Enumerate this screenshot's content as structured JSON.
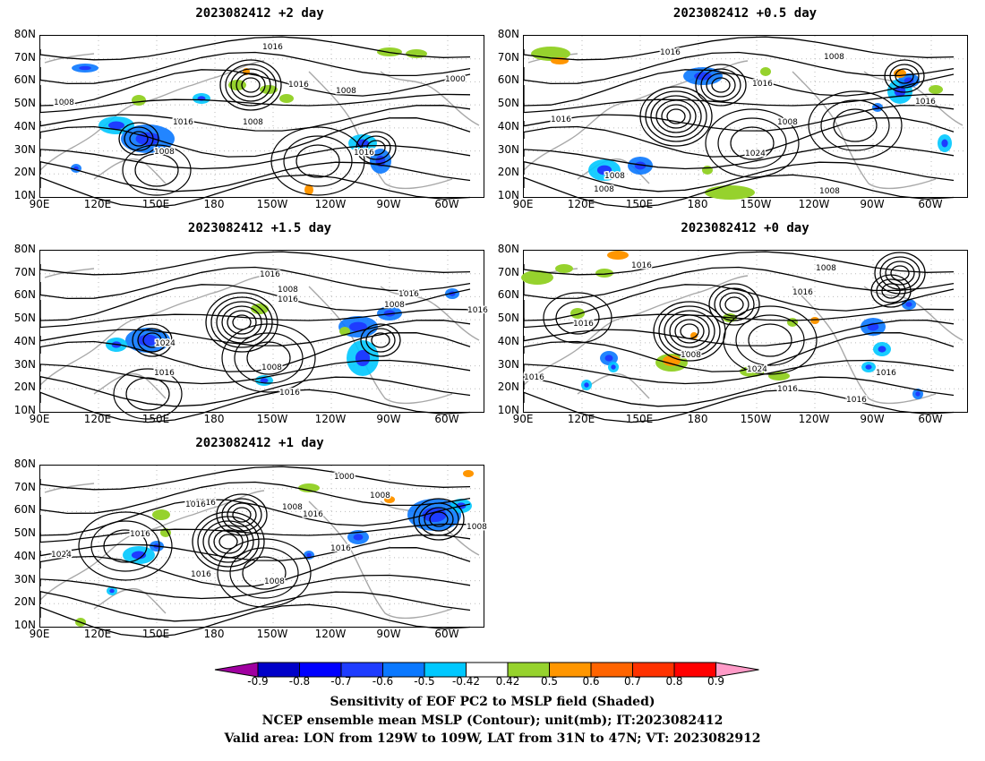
{
  "panels": [
    {
      "id": "p1",
      "title": "2023082412 +2 day"
    },
    {
      "id": "p2",
      "title": "2023082412 +0.5 day"
    },
    {
      "id": "p3",
      "title": "2023082412 +1.5 day"
    },
    {
      "id": "p4",
      "title": "2023082412 +0 day"
    },
    {
      "id": "p5",
      "title": "2023082412 +1 day"
    }
  ],
  "lat_ticks": [
    "80N",
    "70N",
    "60N",
    "50N",
    "40N",
    "30N",
    "20N",
    "10N"
  ],
  "lon_ticks": [
    "90E",
    "120E",
    "150E",
    "180",
    "150W",
    "120W",
    "90W",
    "60W"
  ],
  "contour_labels": {
    "p1": [
      "1016",
      "1016",
      "1000",
      "1008",
      "1008",
      "1016",
      "1008",
      "1016",
      "1008"
    ],
    "p2": [
      "1016",
      "1008",
      "1016",
      "1016",
      "1016",
      "1008",
      "1024",
      "1008",
      "1008",
      "1008"
    ],
    "p3": [
      "1016",
      "1008",
      "1016",
      "1016",
      "1008",
      "1016",
      "1024",
      "1016",
      "1008",
      "1016"
    ],
    "p4": [
      "1016",
      "1008",
      "1016",
      "1016",
      "1008",
      "1024",
      "1016",
      "1016",
      "1016",
      "1016"
    ],
    "p5": [
      "1000",
      "1008",
      "1016",
      "1008",
      "1016",
      "1016",
      "1016",
      "1016",
      "1008",
      "1024",
      "1016",
      "1008"
    ]
  },
  "colorbar": {
    "labels": [
      "-0.9",
      "-0.8",
      "-0.7",
      "-0.6",
      "-0.5",
      "-0.42",
      "0.42",
      "0.5",
      "0.6",
      "0.7",
      "0.8",
      "0.9"
    ],
    "colors": [
      "#0000c8",
      "#0000ff",
      "#1e3cff",
      "#0a78ff",
      "#00c8ff",
      "#ffffff",
      "#96d22d",
      "#ff9600",
      "#ff6400",
      "#ff3200",
      "#ff0000"
    ],
    "low_color": "#a000a0",
    "high_color": "#ff9bc8"
  },
  "caption": {
    "line1": "Sensitivity of EOF PC2 to MSLP field (Shaded)",
    "line2": "NCEP ensemble mean MSLP (Contour); unit(mb); IT:2023082412",
    "line3": "Valid area: LON from 129W to 109W, LAT from 31N to 47N; VT: 2023082912"
  }
}
